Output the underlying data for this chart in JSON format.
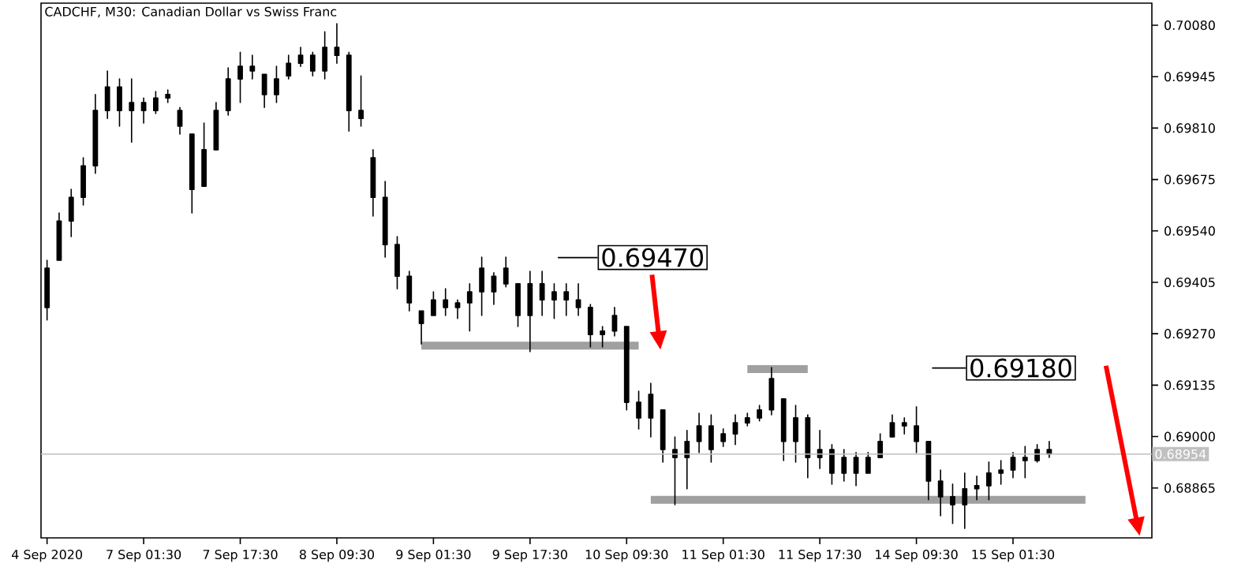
{
  "chart_data": {
    "type": "candlestick",
    "title": "CADCHF, M30:  Canadian Dollar vs Swiss Franc",
    "color": "#000000",
    "categories": [
      "4 Sep 2020",
      null,
      null,
      null,
      null,
      null,
      null,
      null,
      "7 Sep 01:30",
      null,
      null,
      null,
      null,
      null,
      null,
      null,
      "7 Sep 17:30",
      null,
      null,
      null,
      null,
      null,
      null,
      null,
      "8 Sep 09:30",
      null,
      null,
      null,
      null,
      null,
      null,
      null,
      "9 Sep 01:30",
      null,
      null,
      null,
      null,
      null,
      null,
      null,
      "9 Sep 17:30",
      null,
      null,
      null,
      null,
      null,
      null,
      null,
      "10 Sep 09:30",
      null,
      null,
      null,
      null,
      null,
      null,
      null,
      "11 Sep 01:30",
      null,
      null,
      null,
      null,
      null,
      null,
      null,
      "11 Sep 17:30",
      null,
      null,
      null,
      null,
      null,
      null,
      null,
      "14 Sep 09:30",
      null,
      null,
      null,
      null,
      null,
      null,
      null,
      "15 Sep 01:30",
      null,
      null,
      null,
      null,
      null,
      null,
      null,
      null,
      null,
      null,
      null
    ],
    "ohlc": [
      [
        0.69339,
        0.69463,
        0.69306,
        0.69442
      ],
      [
        0.69463,
        0.69587,
        0.69463,
        0.69566
      ],
      [
        0.69566,
        0.69649,
        0.69525,
        0.69628
      ],
      [
        0.69628,
        0.69732,
        0.69608,
        0.69711
      ],
      [
        0.69711,
        0.69898,
        0.69691,
        0.69856
      ],
      [
        0.69856,
        0.6996,
        0.69835,
        0.69918
      ],
      [
        0.69918,
        0.69939,
        0.69815,
        0.69856
      ],
      [
        0.69856,
        0.69939,
        0.69773,
        0.69877
      ],
      [
        0.69877,
        0.69889,
        0.69823,
        0.69856
      ],
      [
        0.69856,
        0.69906,
        0.69848,
        0.69889
      ],
      [
        0.69889,
        0.6991,
        0.69877,
        0.69898
      ],
      [
        0.69856,
        0.69864,
        0.69794,
        0.69815
      ],
      [
        0.69794,
        0.69794,
        0.69587,
        0.69649
      ],
      [
        0.69657,
        0.69823,
        0.69657,
        0.69753
      ],
      [
        0.69753,
        0.69877,
        0.69753,
        0.69856
      ],
      [
        0.69856,
        0.69968,
        0.69844,
        0.69939
      ],
      [
        0.69939,
        0.70009,
        0.69877,
        0.69972
      ],
      [
        0.69972,
        0.70001,
        0.69939,
        0.6996
      ],
      [
        0.69951,
        0.69951,
        0.69864,
        0.69898
      ],
      [
        0.69898,
        0.69972,
        0.69877,
        0.69939
      ],
      [
        0.69947,
        0.70001,
        0.69939,
        0.6998
      ],
      [
        0.6998,
        0.70022,
        0.69972,
        0.70001
      ],
      [
        0.70001,
        0.70009,
        0.69947,
        0.6996
      ],
      [
        0.6996,
        0.70063,
        0.69939,
        0.70022
      ],
      [
        0.70022,
        0.70084,
        0.6998,
        0.70001
      ],
      [
        0.70001,
        0.70009,
        0.69802,
        0.69856
      ],
      [
        0.69856,
        0.69947,
        0.69815,
        0.69835
      ],
      [
        0.69732,
        0.69753,
        0.69579,
        0.69628
      ],
      [
        0.69628,
        0.6967,
        0.69471,
        0.69504
      ],
      [
        0.69504,
        0.69525,
        0.69388,
        0.69421
      ],
      [
        0.69421,
        0.69434,
        0.6933,
        0.69351
      ],
      [
        0.6933,
        0.6933,
        0.69243,
        0.69297
      ],
      [
        0.69318,
        0.6938,
        0.69318,
        0.69359
      ],
      [
        0.69359,
        0.69388,
        0.69318,
        0.69339
      ],
      [
        0.69339,
        0.69359,
        0.6931,
        0.69351
      ],
      [
        0.69351,
        0.69401,
        0.69277,
        0.6938
      ],
      [
        0.6938,
        0.69471,
        0.69318,
        0.69442
      ],
      [
        0.69421,
        0.6943,
        0.69347,
        0.6938
      ],
      [
        0.69401,
        0.69471,
        0.69393,
        0.69442
      ],
      [
        0.69401,
        0.69401,
        0.69289,
        0.69318
      ],
      [
        0.69318,
        0.69434,
        0.69223,
        0.69401
      ],
      [
        0.69401,
        0.69434,
        0.69318,
        0.69359
      ],
      [
        0.69359,
        0.69401,
        0.6931,
        0.6938
      ],
      [
        0.6938,
        0.69401,
        0.69318,
        0.69359
      ],
      [
        0.69359,
        0.69401,
        0.69318,
        0.69339
      ],
      [
        0.69339,
        0.69347,
        0.69235,
        0.69268
      ],
      [
        0.69268,
        0.69289,
        0.69235,
        0.69277
      ],
      [
        0.69277,
        0.69339,
        0.69264,
        0.69318
      ],
      [
        0.69289,
        0.69289,
        0.6907,
        0.6909
      ],
      [
        0.6909,
        0.69119,
        0.6902,
        0.69049
      ],
      [
        0.69049,
        0.6914,
        0.68999,
        0.69111
      ],
      [
        0.6907,
        0.6907,
        0.68933,
        0.68966
      ],
      [
        0.68966,
        0.68999,
        0.68821,
        0.68945
      ],
      [
        0.68945,
        0.69016,
        0.68863,
        0.68987
      ],
      [
        0.68987,
        0.69061,
        0.68958,
        0.69028
      ],
      [
        0.69028,
        0.69057,
        0.68933,
        0.68966
      ],
      [
        0.68987,
        0.6902,
        0.68974,
        0.69007
      ],
      [
        0.69007,
        0.69057,
        0.68979,
        0.69036
      ],
      [
        0.69036,
        0.69061,
        0.69028,
        0.69049
      ],
      [
        0.69049,
        0.69082,
        0.69041,
        0.6907
      ],
      [
        0.6907,
        0.69181,
        0.69057,
        0.69152
      ],
      [
        0.69099,
        0.69099,
        0.68937,
        0.68987
      ],
      [
        0.68987,
        0.69082,
        0.68933,
        0.69049
      ],
      [
        0.69049,
        0.69057,
        0.68892,
        0.68945
      ],
      [
        0.68945,
        0.69016,
        0.68916,
        0.68966
      ],
      [
        0.68966,
        0.68979,
        0.68875,
        0.68904
      ],
      [
        0.68904,
        0.68966,
        0.68883,
        0.68945
      ],
      [
        0.68945,
        0.68958,
        0.68871,
        0.68904
      ],
      [
        0.68904,
        0.68958,
        0.68904,
        0.68945
      ],
      [
        0.68945,
        0.69007,
        0.68945,
        0.68987
      ],
      [
        0.68999,
        0.69057,
        0.68999,
        0.69036
      ],
      [
        0.69036,
        0.69049,
        0.69007,
        0.69028
      ],
      [
        0.69028,
        0.69078,
        0.68958,
        0.68987
      ],
      [
        0.68987,
        0.68987,
        0.68834,
        0.68883
      ],
      [
        0.68883,
        0.68912,
        0.68792,
        0.68842
      ],
      [
        0.68842,
        0.68875,
        0.68772,
        0.68821
      ],
      [
        0.68821,
        0.68904,
        0.68759,
        0.68863
      ],
      [
        0.68863,
        0.68896,
        0.68834,
        0.68871
      ],
      [
        0.68871,
        0.68933,
        0.68834,
        0.68904
      ],
      [
        0.68904,
        0.68937,
        0.68875,
        0.68912
      ],
      [
        0.68912,
        0.68958,
        0.68892,
        0.68945
      ],
      [
        0.68945,
        0.68974,
        0.68892,
        0.68937
      ],
      [
        0.68937,
        0.68979,
        0.68933,
        0.68966
      ],
      [
        0.68966,
        0.68987,
        0.68945,
        0.68954
      ],
      null,
      null,
      null,
      null,
      null,
      null,
      null,
      null
    ],
    "series": [
      {
        "type": "line",
        "color": "#a0a0a0",
        "values": [
          null,
          null,
          null,
          null,
          null,
          null,
          null,
          null,
          null,
          null,
          null,
          null,
          null,
          null,
          null,
          null,
          null,
          null,
          null,
          null,
          null,
          null,
          null,
          null,
          null,
          null,
          null,
          null,
          null,
          null,
          null,
          0.69239,
          0.69239,
          0.69239,
          0.69239,
          0.69239,
          0.69239,
          0.69239,
          0.69239,
          0.69239,
          0.69239,
          0.69239,
          0.69239,
          0.69239,
          0.69239,
          0.69239,
          0.69239,
          0.69239,
          0.69239,
          0.69239,
          null,
          null,
          null,
          null,
          null,
          null,
          null,
          null,
          null,
          null,
          null,
          null,
          null,
          null,
          null,
          null,
          null,
          null,
          null,
          null,
          null,
          null,
          null,
          null,
          null,
          null,
          null,
          null,
          null,
          null,
          null,
          null,
          null,
          null,
          null,
          null,
          null,
          null,
          null,
          null,
          null,
          null
        ]
      },
      {
        "type": "line",
        "color": "#a0a0a0",
        "values": [
          null,
          null,
          null,
          null,
          null,
          null,
          null,
          null,
          null,
          null,
          null,
          null,
          null,
          null,
          null,
          null,
          null,
          null,
          null,
          null,
          null,
          null,
          null,
          null,
          null,
          null,
          null,
          null,
          null,
          null,
          null,
          null,
          null,
          null,
          null,
          null,
          null,
          null,
          null,
          null,
          null,
          null,
          null,
          null,
          null,
          null,
          null,
          null,
          null,
          null,
          null,
          null,
          null,
          null,
          null,
          null,
          null,
          null,
          0.69177,
          0.69177,
          0.69177,
          0.69177,
          0.69177,
          0.69177,
          null,
          null,
          null,
          null,
          null,
          null,
          null,
          null,
          null,
          null,
          null,
          null,
          null,
          null,
          null,
          null,
          null,
          null,
          null,
          null,
          null,
          null,
          null,
          null,
          null,
          null,
          null,
          null
        ]
      },
      {
        "type": "line",
        "color": "#a0a0a0",
        "values": [
          null,
          null,
          null,
          null,
          null,
          null,
          null,
          null,
          null,
          null,
          null,
          null,
          null,
          null,
          null,
          null,
          null,
          null,
          null,
          null,
          null,
          null,
          null,
          null,
          null,
          null,
          null,
          null,
          null,
          null,
          null,
          null,
          null,
          null,
          null,
          null,
          null,
          null,
          null,
          null,
          null,
          null,
          null,
          null,
          null,
          null,
          null,
          null,
          null,
          null,
          0.68834,
          0.68834,
          0.68834,
          0.68834,
          0.68834,
          0.68834,
          0.68834,
          0.68834,
          0.68834,
          0.68834,
          0.68834,
          0.68834,
          0.68834,
          0.68834,
          0.68834,
          0.68834,
          0.68834,
          0.68834,
          0.68834,
          0.68834,
          0.68834,
          0.68834,
          0.68834,
          0.68834,
          0.68834,
          0.68834,
          0.68834,
          0.68834,
          0.68834,
          0.68834,
          0.68834,
          0.68834,
          0.68834,
          0.68834,
          0.68834,
          0.68834,
          0.68834,
          null,
          null,
          null,
          null,
          null
        ]
      }
    ],
    "ylim": [
      0.68734,
      0.70138
    ],
    "yticks": [
      0.68865,
      {
        "value": 0.69,
        "label": "0.69000"
      },
      0.69135,
      {
        "value": 0.6927,
        "label": "0.69270"
      },
      0.69405,
      {
        "value": 0.6954,
        "label": "0.69540"
      },
      0.69675,
      {
        "value": 0.6981,
        "label": "0.69810"
      },
      0.69945,
      {
        "value": 0.7008,
        "label": "0.70080"
      }
    ],
    "ref_lines": [
      {
        "axis": "y",
        "value": 0.68954,
        "label": "0.68954",
        "color": "#c0c0c0"
      }
    ],
    "annotations": [
      "0.69470",
      "0.69180"
    ]
  }
}
